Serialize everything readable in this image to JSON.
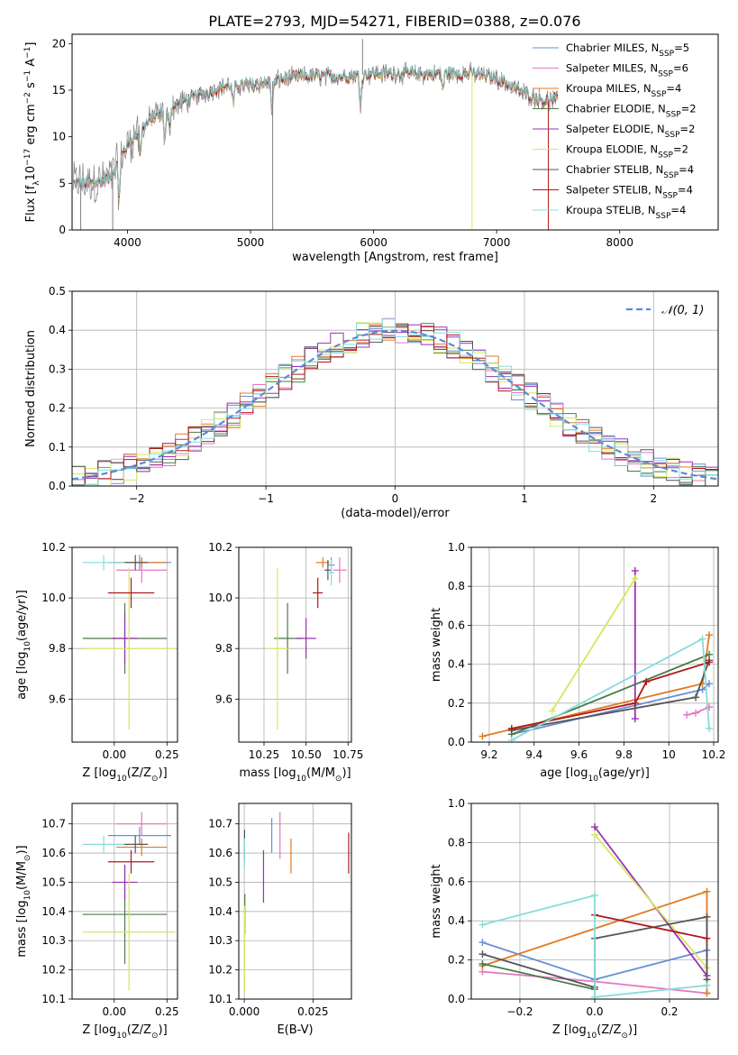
{
  "figure_title": "PLATE=2793, MJD=54271, FIBERID=0388, z=0.076",
  "colors": {
    "Chabrier MILES": "#6a8fd6",
    "Salpeter MILES": "#e377c2",
    "Kroupa MILES": "#e07b20",
    "Chabrier ELODIE": "#4c7a4c",
    "Salpeter ELODIE": "#9b30b0",
    "Kroupa ELODIE": "#d4e860",
    "Chabrier STELIB": "#555555",
    "Salpeter STELIB": "#b01818",
    "Kroupa STELIB": "#86dcdc",
    "spectrum": "#808080"
  },
  "chart_data": [
    {
      "id": "spectrum",
      "type": "line",
      "title": "PLATE=2793, MJD=54271, FIBERID=0388, z=0.076",
      "xlabel": "wavelength [Angstrom, rest frame]",
      "ylabel": "Flux [f",
      "ylabel_sub": "λ",
      "ylabel_mid": "10",
      "ylabel_exp": "−17",
      "ylabel_end": " erg cm",
      "ylabel_exp2": "−2",
      "ylabel_end2": " s",
      "ylabel_exp3": "−1",
      "ylabel_end3": " A",
      "ylabel_exp4": "−1",
      "ylabel_close": "]",
      "xlim": [
        3550,
        8800
      ],
      "ylim": [
        0,
        21
      ],
      "xticks": [
        4000,
        5000,
        6000,
        7000,
        8000
      ],
      "yticks": [
        0,
        5,
        10,
        15,
        20
      ],
      "legend_position": "right",
      "legend": [
        {
          "name": "Chabrier MILES",
          "sub": "SSP",
          "n": "5"
        },
        {
          "name": "Salpeter MILES",
          "sub": "SSP",
          "n": "6"
        },
        {
          "name": "Kroupa MILES",
          "sub": "SSP",
          "n": "4"
        },
        {
          "name": "Chabrier ELODIE",
          "sub": "SSP",
          "n": "2"
        },
        {
          "name": "Salpeter ELODIE",
          "sub": "SSP",
          "n": "2"
        },
        {
          "name": "Kroupa ELODIE",
          "sub": "SSP",
          "n": "2"
        },
        {
          "name": "Chabrier STELIB",
          "sub": "SSP",
          "n": "4"
        },
        {
          "name": "Salpeter STELIB",
          "sub": "SSP",
          "n": "4"
        },
        {
          "name": "Kroupa STELIB",
          "sub": "SSP",
          "n": "4"
        }
      ],
      "continuum": {
        "wavelength": [
          3560,
          3700,
          3850,
          3950,
          4050,
          4200,
          4400,
          4600,
          4800,
          5000,
          5200,
          5400,
          5600,
          5800,
          6000,
          6200,
          6400,
          6600,
          6800,
          7000,
          7200,
          7400,
          7500
        ],
        "flux": [
          5,
          5,
          5.5,
          8,
          10,
          12,
          13.5,
          14.5,
          15.5,
          15.5,
          16,
          16.5,
          16.5,
          16.5,
          16.8,
          16.8,
          16.7,
          16.8,
          16.8,
          16.3,
          14.8,
          13.8,
          14
        ]
      },
      "absorption_lines": [
        {
          "wavelength": 3933,
          "depth": 4
        },
        {
          "wavelength": 4102,
          "depth": 2.5
        },
        {
          "wavelength": 4304,
          "depth": 3
        },
        {
          "wavelength": 4340,
          "depth": 2
        },
        {
          "wavelength": 4861,
          "depth": 2
        },
        {
          "wavelength": 5175,
          "depth": 3
        },
        {
          "wavelength": 5893,
          "depth": 3
        },
        {
          "wavelength": 6563,
          "depth": 1.5
        }
      ],
      "spikes": [
        {
          "wavelength": 3620,
          "flux": 0
        },
        {
          "wavelength": 3880,
          "flux": 0
        },
        {
          "wavelength": 5180,
          "flux": 0
        },
        {
          "wavelength": 5910,
          "flux": 20.5
        },
        {
          "wavelength": 6800,
          "flux": 0
        },
        {
          "wavelength": 7420,
          "flux": 0
        }
      ]
    },
    {
      "id": "residuals",
      "type": "bar",
      "xlabel": "(data-model)/error",
      "ylabel": "Normed distribution",
      "xlim": [
        -2.5,
        2.5
      ],
      "ylim": [
        0,
        0.5
      ],
      "xticks": [
        -2,
        -1,
        0,
        1,
        2
      ],
      "yticks": [
        0.0,
        0.1,
        0.2,
        0.3,
        0.4,
        0.5
      ],
      "grid": true,
      "bin_width": 0.1,
      "bin_start": -2.5,
      "legend_position": "top-right",
      "legend": [
        {
          "name": "𝒩(0, 1)"
        }
      ],
      "reference_curve": "gaussian mean 0 sigma 1"
    },
    {
      "id": "age-vs-z",
      "type": "scatter",
      "xlabel": "Z [log",
      "xlabel_sub": "10",
      "xlabel_end": "(Z/Z",
      "xlabel_sub2": "⊙",
      "xlabel_close": ")]",
      "ylabel": "age  [log",
      "ylabel_sub": "10",
      "ylabel_end": "(age/yr)]",
      "xlim": [
        -0.2,
        0.3
      ],
      "ylim": [
        9.43,
        10.2
      ],
      "xticks": [
        0.0,
        0.25
      ],
      "xticklabels": [
        "0.00",
        "0.25"
      ],
      "yticks": [
        9.6,
        9.8,
        10.0,
        10.2
      ],
      "grid": true,
      "points": [
        {
          "model": "Chabrier MILES",
          "x": 0.12,
          "y": 10.14,
          "xerr": 0.15,
          "yerr": 0.03
        },
        {
          "model": "Salpeter MILES",
          "x": 0.13,
          "y": 10.11,
          "xerr": 0.12,
          "yerr": 0.05
        },
        {
          "model": "Kroupa MILES",
          "x": 0.13,
          "y": 10.14,
          "xerr": 0.12,
          "yerr": 0.02
        },
        {
          "model": "Chabrier ELODIE",
          "x": 0.05,
          "y": 9.84,
          "xerr": 0.2,
          "yerr": 0.14
        },
        {
          "model": "Salpeter ELODIE",
          "x": 0.05,
          "y": 9.84,
          "xerr": 0.06,
          "yerr": 0.1
        },
        {
          "model": "Kroupa ELODIE",
          "x": 0.07,
          "y": 9.8,
          "xerr": 0.22,
          "yerr": 0.32
        },
        {
          "model": "Chabrier STELIB",
          "x": 0.1,
          "y": 10.14,
          "xerr": 0.06,
          "yerr": 0.03
        },
        {
          "model": "Salpeter STELIB",
          "x": 0.08,
          "y": 10.02,
          "xerr": 0.11,
          "yerr": 0.06
        },
        {
          "model": "Kroupa STELIB",
          "x": -0.05,
          "y": 10.14,
          "xerr": 0.1,
          "yerr": 0.03
        }
      ]
    },
    {
      "id": "age-vs-mass",
      "type": "scatter",
      "xlabel": "mass [log",
      "xlabel_sub": "10",
      "xlabel_end": "(M/M",
      "xlabel_sub2": "⊙",
      "xlabel_close": ")]",
      "xlim": [
        10.1,
        10.77
      ],
      "ylim": [
        9.43,
        10.2
      ],
      "xticks": [
        10.25,
        10.5,
        10.75
      ],
      "xticklabels": [
        "10.25",
        "10.50",
        "10.75"
      ],
      "yticks": [
        9.6,
        9.8,
        10.0,
        10.2
      ],
      "grid": true,
      "points": [
        {
          "model": "Chabrier MILES",
          "x": 10.65,
          "y": 10.13,
          "xerr": 0.02,
          "yerr": 0.03
        },
        {
          "model": "Salpeter MILES",
          "x": 10.7,
          "y": 10.11,
          "xerr": 0.04,
          "yerr": 0.05
        },
        {
          "model": "Kroupa MILES",
          "x": 10.6,
          "y": 10.14,
          "xerr": 0.04,
          "yerr": 0.02
        },
        {
          "model": "Chabrier ELODIE",
          "x": 10.39,
          "y": 9.84,
          "xerr": 0.08,
          "yerr": 0.14
        },
        {
          "model": "Salpeter ELODIE",
          "x": 10.5,
          "y": 9.84,
          "xerr": 0.06,
          "yerr": 0.08
        },
        {
          "model": "Kroupa ELODIE",
          "x": 10.33,
          "y": 9.8,
          "xerr": 0.07,
          "yerr": 0.32
        },
        {
          "model": "Chabrier STELIB",
          "x": 10.63,
          "y": 10.11,
          "xerr": 0.02,
          "yerr": 0.04
        },
        {
          "model": "Salpeter STELIB",
          "x": 10.57,
          "y": 10.02,
          "xerr": 0.03,
          "yerr": 0.06
        },
        {
          "model": "Kroupa STELIB",
          "x": 10.65,
          "y": 10.1,
          "xerr": 0.02,
          "yerr": 0.05
        }
      ]
    },
    {
      "id": "weight-vs-age",
      "type": "line",
      "xlabel": "age  [log",
      "xlabel_sub": "10",
      "xlabel_end": "(age/yr)]",
      "ylabel": "mass weight",
      "xlim": [
        9.12,
        10.22
      ],
      "ylim": [
        0,
        1.0
      ],
      "xticks": [
        9.2,
        9.4,
        9.6,
        9.8,
        10.0,
        10.2
      ],
      "yticks": [
        0.0,
        0.2,
        0.4,
        0.6,
        0.8,
        1.0
      ],
      "grid": true,
      "series": [
        {
          "model": "Chabrier MILES",
          "x": [
            9.3,
            10.15,
            10.18
          ],
          "y": [
            0.04,
            0.27,
            0.3
          ]
        },
        {
          "model": "Salpeter MILES",
          "x": [
            10.08,
            10.12,
            10.18
          ],
          "y": [
            0.14,
            0.15,
            0.18
          ]
        },
        {
          "model": "Kroupa MILES",
          "x": [
            9.17,
            10.15,
            10.18
          ],
          "y": [
            0.03,
            0.3,
            0.55
          ]
        },
        {
          "model": "Chabrier ELODIE",
          "x": [
            9.3,
            10.18
          ],
          "y": [
            0.04,
            0.45
          ]
        },
        {
          "model": "Salpeter ELODIE",
          "x": [
            9.85,
            9.85
          ],
          "y": [
            0.12,
            0.88
          ]
        },
        {
          "model": "Kroupa ELODIE",
          "x": [
            9.48,
            9.85
          ],
          "y": [
            0.16,
            0.84
          ]
        },
        {
          "model": "Chabrier STELIB",
          "x": [
            9.3,
            10.12,
            10.18
          ],
          "y": [
            0.06,
            0.23,
            0.42
          ]
        },
        {
          "model": "Salpeter STELIB",
          "x": [
            9.3,
            9.85,
            9.9,
            10.18
          ],
          "y": [
            0.07,
            0.2,
            0.31,
            0.41
          ]
        },
        {
          "model": "Kroupa STELIB",
          "x": [
            9.3,
            10.15,
            10.18
          ],
          "y": [
            0.01,
            0.53,
            0.07
          ]
        }
      ]
    },
    {
      "id": "mass-vs-z",
      "type": "scatter",
      "xlabel": "Z [log",
      "xlabel_sub": "10",
      "xlabel_end": "(Z/Z",
      "xlabel_sub2": "⊙",
      "xlabel_close": ")]",
      "ylabel": "mass [log",
      "ylabel_sub": "10",
      "ylabel_end": "(M/M",
      "ylabel_sub2": "⊙",
      "ylabel_close": ")]",
      "xlim": [
        -0.2,
        0.3
      ],
      "ylim": [
        10.1,
        10.77
      ],
      "xticks": [
        0.0,
        0.25
      ],
      "xticklabels": [
        "0.00",
        "0.25"
      ],
      "yticks": [
        10.1,
        10.2,
        10.3,
        10.4,
        10.5,
        10.6,
        10.7
      ],
      "grid": true,
      "points": [
        {
          "model": "Chabrier MILES",
          "x": 0.12,
          "y": 10.66,
          "xerr": 0.15,
          "yerr": 0.03
        },
        {
          "model": "Salpeter MILES",
          "x": 0.13,
          "y": 10.7,
          "xerr": 0.12,
          "yerr": 0.04
        },
        {
          "model": "Kroupa MILES",
          "x": 0.13,
          "y": 10.62,
          "xerr": 0.12,
          "yerr": 0.03
        },
        {
          "model": "Chabrier ELODIE",
          "x": 0.05,
          "y": 10.39,
          "xerr": 0.2,
          "yerr": 0.17
        },
        {
          "model": "Salpeter ELODIE",
          "x": 0.05,
          "y": 10.5,
          "xerr": 0.06,
          "yerr": 0.06
        },
        {
          "model": "Kroupa ELODIE",
          "x": 0.07,
          "y": 10.33,
          "xerr": 0.22,
          "yerr": 0.2
        },
        {
          "model": "Chabrier STELIB",
          "x": 0.1,
          "y": 10.63,
          "xerr": 0.06,
          "yerr": 0.03
        },
        {
          "model": "Salpeter STELIB",
          "x": 0.08,
          "y": 10.57,
          "xerr": 0.11,
          "yerr": 0.04
        },
        {
          "model": "Kroupa STELIB",
          "x": -0.05,
          "y": 10.63,
          "xerr": 0.1,
          "yerr": 0.03
        }
      ]
    },
    {
      "id": "mass-vs-ebv",
      "type": "scatter",
      "xlabel": "E(B-V)",
      "xlim": [
        -0.002,
        0.039
      ],
      "ylim": [
        10.1,
        10.77
      ],
      "xticks": [
        0.0,
        0.025
      ],
      "xticklabels": [
        "0.000",
        "0.025"
      ],
      "yticks": [
        10.1,
        10.2,
        10.3,
        10.4,
        10.5,
        10.6,
        10.7
      ],
      "grid": true,
      "points": [
        {
          "model": "Chabrier MILES",
          "x": 0.01,
          "y": 10.66,
          "yerr": 0.06
        },
        {
          "model": "Salpeter MILES",
          "x": 0.013,
          "y": 10.66,
          "yerr": 0.08
        },
        {
          "model": "Kroupa MILES",
          "x": 0.017,
          "y": 10.59,
          "yerr": 0.06
        },
        {
          "model": "Chabrier ELODIE",
          "x": 0.0002,
          "y": 10.39,
          "yerr": 0.07
        },
        {
          "model": "Salpeter ELODIE",
          "x": 0.007,
          "y": 10.52,
          "yerr": 0.09
        },
        {
          "model": "Kroupa ELODIE",
          "x": 0.0001,
          "y": 10.27,
          "yerr": 0.15
        },
        {
          "model": "Chabrier STELIB",
          "x": 0.0001,
          "y": 10.63,
          "yerr": 0.05
        },
        {
          "model": "Salpeter STELIB",
          "x": 0.038,
          "y": 10.6,
          "yerr": 0.07
        },
        {
          "model": "Kroupa STELIB",
          "x": 0.0001,
          "y": 10.6,
          "yerr": 0.05
        }
      ]
    },
    {
      "id": "weight-vs-z",
      "type": "line",
      "xlabel": "Z [log",
      "xlabel_sub": "10",
      "xlabel_end": "(Z/Z",
      "xlabel_sub2": "⊙",
      "xlabel_close": ")]",
      "ylabel": "mass weight",
      "xlim": [
        -0.33,
        0.33
      ],
      "ylim": [
        0,
        1.0
      ],
      "xticks": [
        -0.2,
        0.0,
        0.2
      ],
      "xticklabels": [
        "−0.2",
        "0.0",
        "0.2"
      ],
      "yticks": [
        0.0,
        0.2,
        0.4,
        0.6,
        0.8,
        1.0
      ],
      "grid": true,
      "series": [
        {
          "model": "Chabrier MILES",
          "x": [
            -0.3,
            0.0,
            0.3
          ],
          "y": [
            0.29,
            0.1,
            0.25
          ]
        },
        {
          "model": "Salpeter MILES",
          "x": [
            -0.3,
            0.0,
            0.3
          ],
          "y": [
            0.14,
            0.09,
            0.03
          ]
        },
        {
          "model": "Kroupa MILES",
          "x": [
            -0.3,
            0.3,
            0.3
          ],
          "y": [
            0.17,
            0.55,
            0.03
          ]
        },
        {
          "model": "Chabrier ELODIE",
          "x": [
            -0.3,
            0.0
          ],
          "y": [
            0.18,
            0.05
          ]
        },
        {
          "model": "Salpeter ELODIE",
          "x": [
            0.0,
            0.3
          ],
          "y": [
            0.88,
            0.12
          ]
        },
        {
          "model": "Kroupa ELODIE",
          "x": [
            0.0,
            0.3
          ],
          "y": [
            0.84,
            0.16
          ]
        },
        {
          "model": "Chabrier STELIB",
          "x": [
            -0.3,
            0.0,
            0.0,
            0.3,
            0.3
          ],
          "y": [
            0.23,
            0.06,
            0.31,
            0.42,
            0.1
          ]
        },
        {
          "model": "Salpeter STELIB",
          "x": [
            0.0,
            0.3
          ],
          "y": [
            0.43,
            0.31
          ]
        },
        {
          "model": "Kroupa STELIB",
          "x": [
            -0.3,
            0.0,
            0.0,
            0.3
          ],
          "y": [
            0.38,
            0.53,
            0.01,
            0.07
          ]
        }
      ]
    }
  ]
}
